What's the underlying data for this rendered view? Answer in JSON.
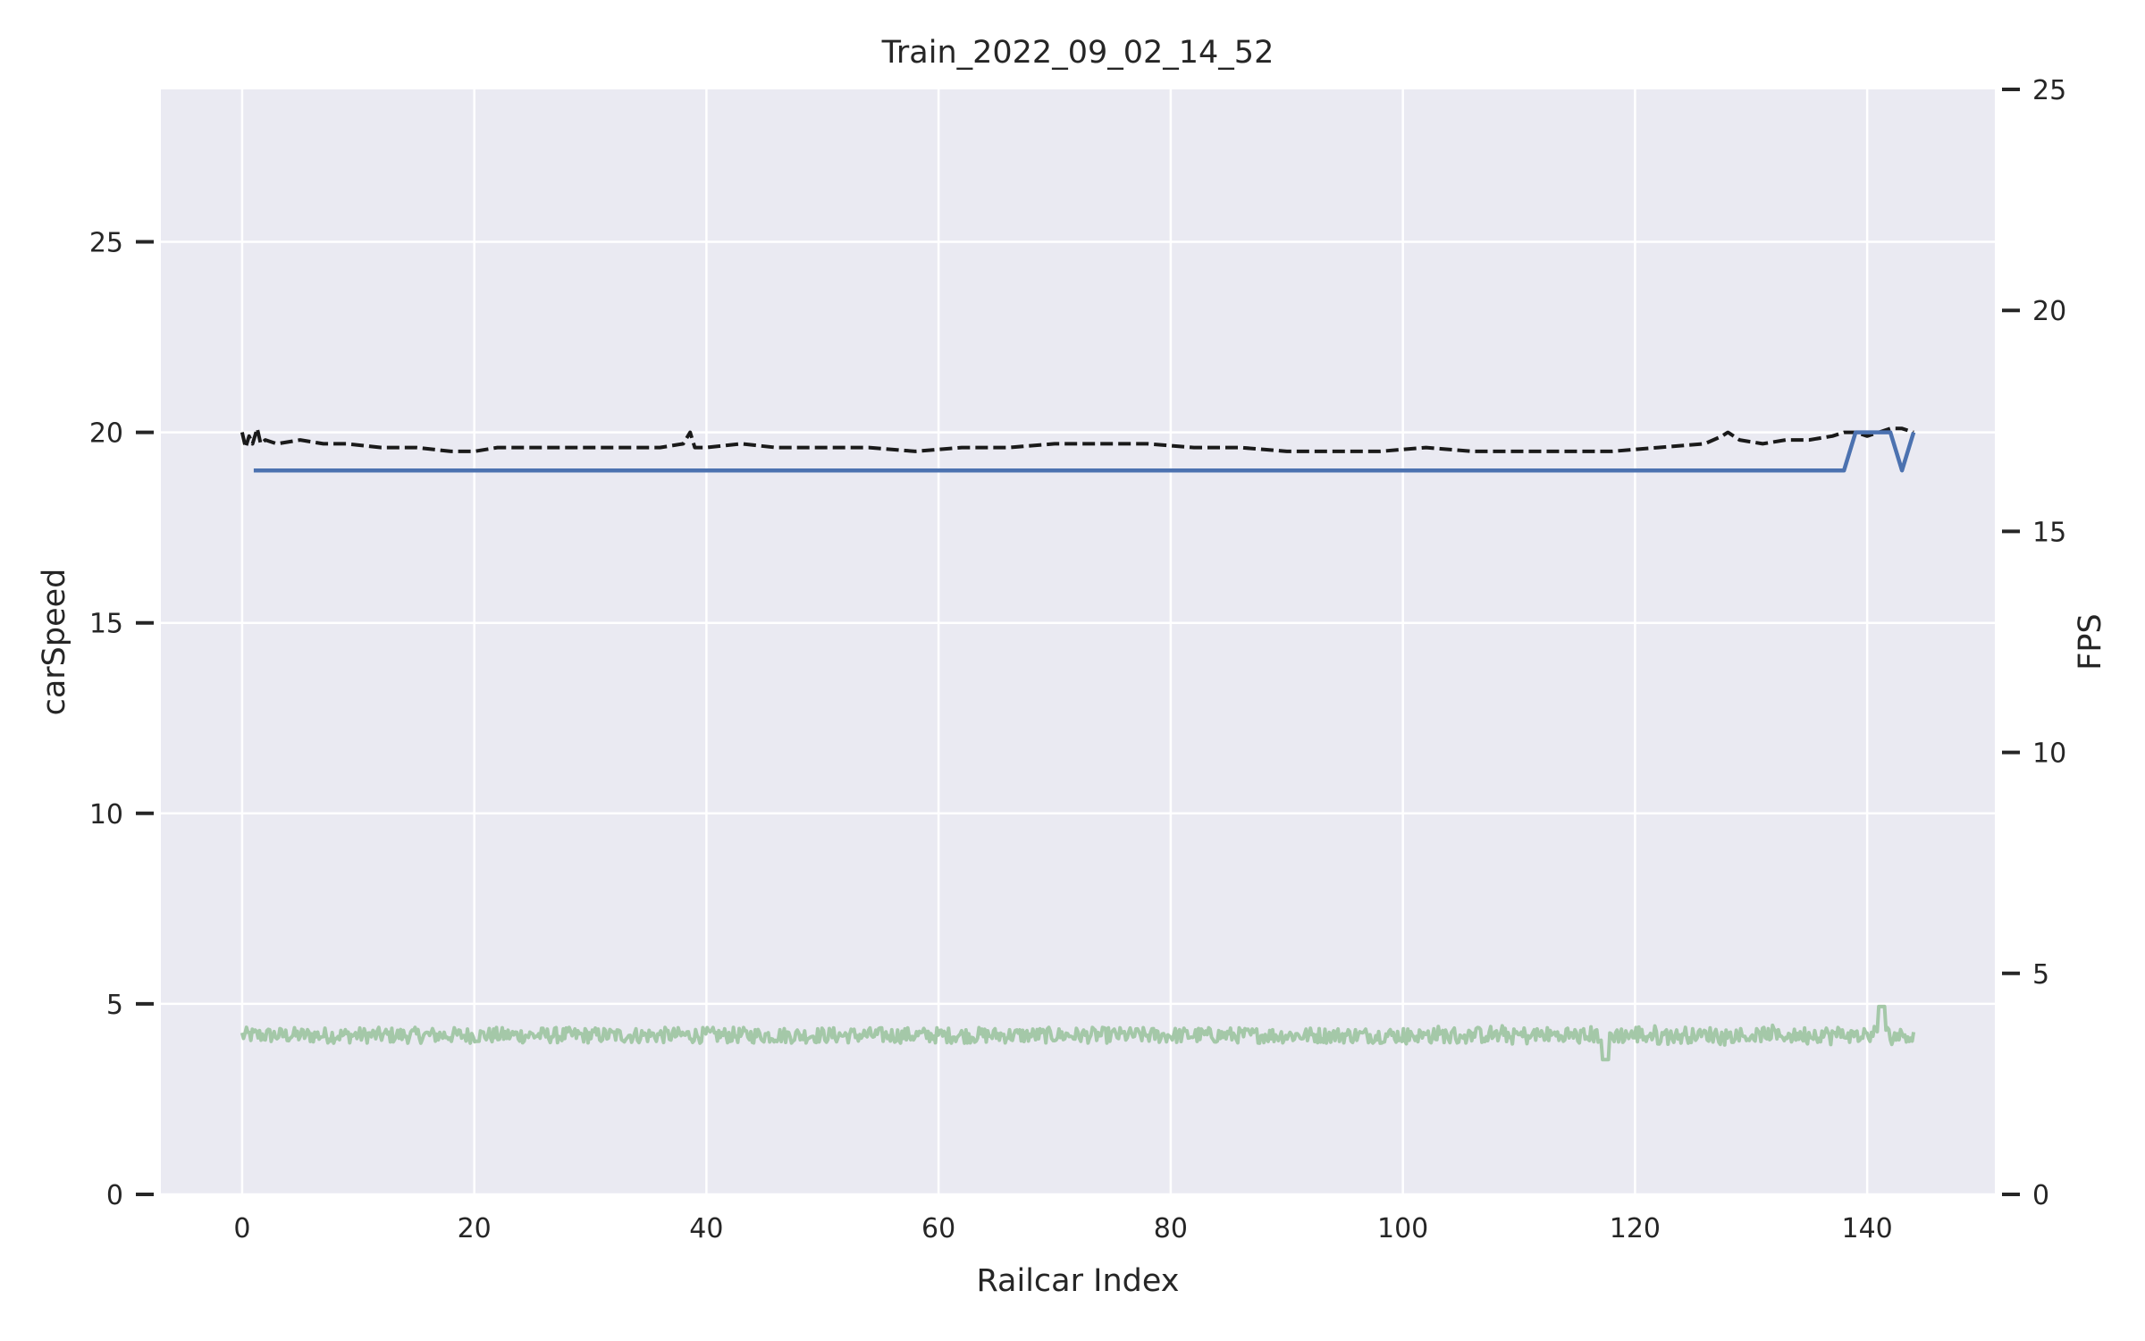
{
  "chart_data": {
    "type": "line",
    "title": "Train_2022_09_02_14_52",
    "xlabel": "Railcar Index",
    "ylabel_left": "carSpeed",
    "ylabel_right": "FPS",
    "xlim": [
      -7,
      151
    ],
    "ylim_left": [
      0,
      29
    ],
    "ylim_right": [
      0,
      25
    ],
    "x_ticks": [
      0,
      20,
      40,
      60,
      80,
      100,
      120,
      140
    ],
    "y_left_ticks": [
      0,
      5,
      10,
      15,
      20,
      25
    ],
    "y_right_ticks": [
      0,
      5,
      10,
      15,
      20,
      25
    ],
    "grid": true,
    "colors": {
      "background": "#eaeaf2",
      "grid": "#ffffff",
      "carSpeed": "#4c72b0",
      "left_axis_label": "#4c72b0",
      "dashed": "#1a1a1a",
      "fps": "#a4c8a8"
    },
    "series": [
      {
        "axis": "left",
        "style": "solid",
        "x": [
          1,
          138,
          139,
          140,
          142,
          143,
          144
        ],
        "y": [
          19,
          19,
          20,
          20,
          20,
          19,
          20
        ]
      },
      {
        "axis": "left",
        "style": "dashed",
        "x": [
          0,
          0.3,
          0.6,
          0.9,
          1.3,
          1.6,
          2,
          3,
          5,
          7,
          9,
          12,
          15,
          18,
          20,
          22,
          25,
          28,
          30,
          33,
          36,
          38,
          38.6,
          39,
          40,
          43,
          46,
          50,
          54,
          58,
          62,
          66,
          70,
          74,
          78,
          82,
          86,
          90,
          94,
          98,
          102,
          106,
          110,
          114,
          118,
          122,
          126,
          127.5,
          128,
          129,
          131,
          133,
          135,
          137,
          138,
          139,
          140,
          141,
          142,
          143,
          144
        ],
        "y": [
          20,
          19.6,
          19.9,
          19.7,
          20.1,
          19.7,
          19.8,
          19.7,
          19.8,
          19.7,
          19.7,
          19.6,
          19.6,
          19.5,
          19.5,
          19.6,
          19.6,
          19.6,
          19.6,
          19.6,
          19.6,
          19.7,
          20.0,
          19.6,
          19.6,
          19.7,
          19.6,
          19.6,
          19.6,
          19.5,
          19.6,
          19.6,
          19.7,
          19.7,
          19.7,
          19.6,
          19.6,
          19.5,
          19.5,
          19.5,
          19.6,
          19.5,
          19.5,
          19.5,
          19.5,
          19.6,
          19.7,
          19.9,
          20.0,
          19.8,
          19.7,
          19.8,
          19.8,
          19.9,
          20.0,
          20.0,
          19.9,
          20.0,
          20.1,
          20.1,
          20.0
        ]
      },
      {
        "name": "FPS",
        "axis": "right",
        "style": "solid",
        "x_range": [
          0,
          144
        ],
        "mean": 3.6,
        "spread": 0.18,
        "min": 3.0,
        "max": 4.3
      }
    ]
  }
}
